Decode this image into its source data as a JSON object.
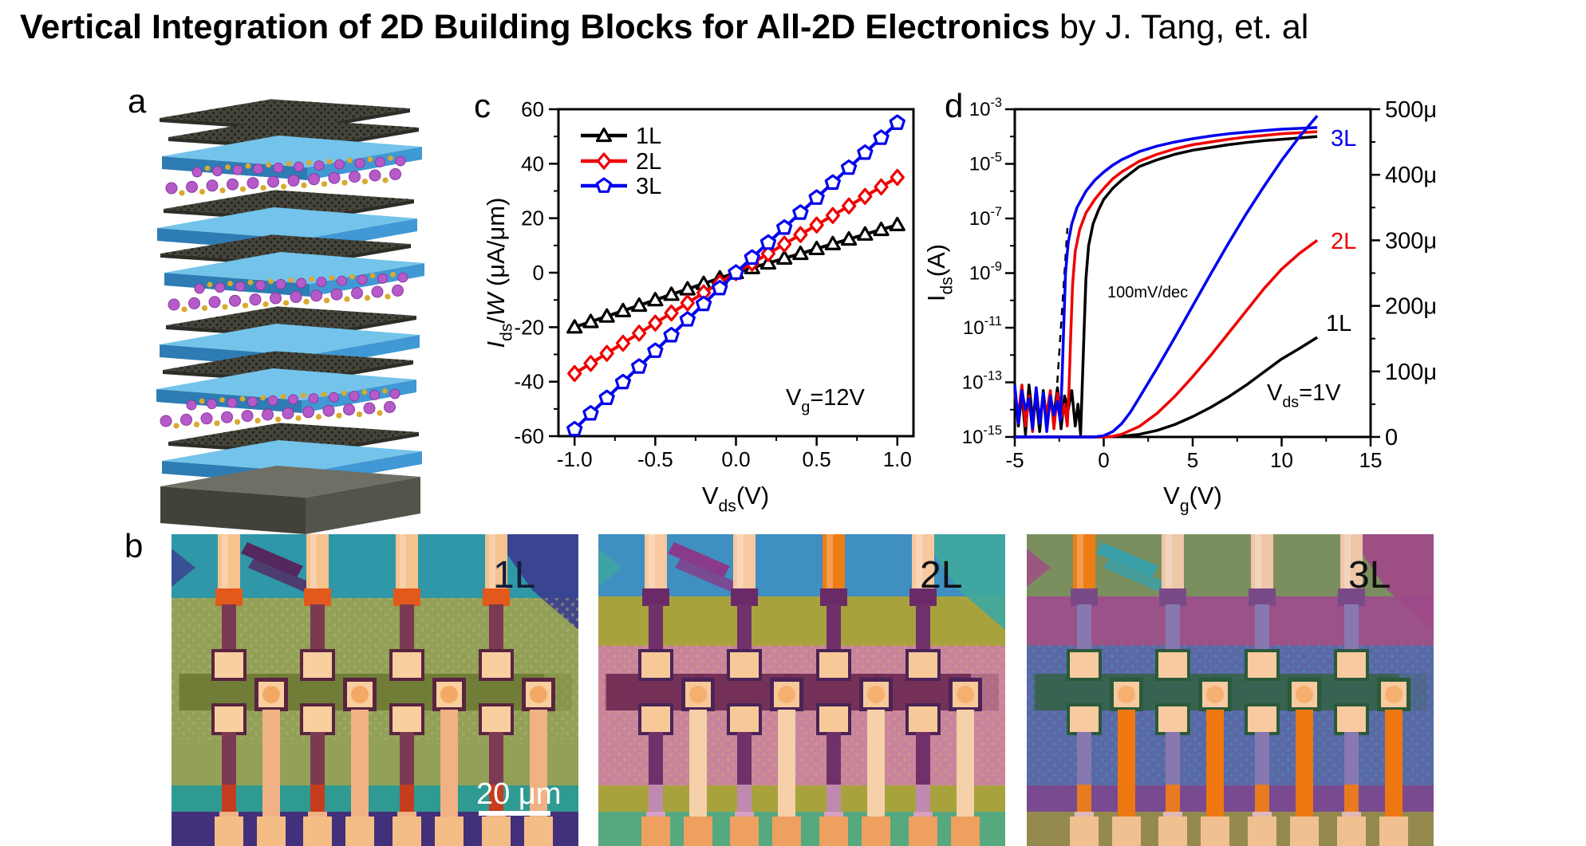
{
  "title": {
    "main": "Vertical Integration of 2D Building Blocks for All-2D Electronics",
    "byline": " by J. Tang, et. al"
  },
  "panels": {
    "a": "a",
    "b": "b",
    "c": "c",
    "d": "d"
  },
  "panel_a": {
    "description": "exploded 3D stack of alternating graphene, h-BN and TMD layers on a substrate",
    "colors": {
      "hbn_top": "#74c3ea",
      "hbn_front_left": "#2e7cb4",
      "hbn_front_right": "#4098d4",
      "graphene": "#45453c",
      "graphene_dot": "#23231c",
      "tmd_ball": "#b55ac8",
      "tmd_ball_edge": "#8a3aa0",
      "tmd_small_ball": "#d8aa30",
      "substrate_top": "#6f6f66",
      "substrate_front_left": "#42423a",
      "substrate_front_right": "#54544c"
    },
    "layers": [
      "graphene",
      "graphene",
      "hbn",
      "tmd",
      "graphene",
      "hbn",
      "graphene",
      "hbn",
      "tmd",
      "graphene",
      "hbn",
      "graphene",
      "hbn",
      "tmd",
      "graphene",
      "hbn",
      "substrate"
    ]
  },
  "chart_data": [
    {
      "id": "c",
      "type": "line",
      "xlabel": "V~ds~(V)",
      "ylabel": "*I*~ds~/*W* (μA/μm)",
      "annotation": "V~g~=12V",
      "xlim": [
        -1.1,
        1.1
      ],
      "ylim": [
        -60,
        60
      ],
      "xticks": [
        -1.0,
        -0.5,
        0.0,
        0.5,
        1.0
      ],
      "xtick_labels": [
        "-1.0",
        "-0.5",
        "0.0",
        "0.5",
        "1.0"
      ],
      "yticks": [
        -60,
        -40,
        -20,
        0,
        20,
        40,
        60
      ],
      "ytick_labels": [
        "-60",
        "-40",
        "-20",
        "0",
        "20",
        "40",
        "60"
      ],
      "grid": false,
      "legend_position": "top-left",
      "x": [
        -1.0,
        -0.9,
        -0.8,
        -0.7,
        -0.6,
        -0.5,
        -0.4,
        -0.3,
        -0.2,
        -0.1,
        0.0,
        0.1,
        0.2,
        0.3,
        0.4,
        0.5,
        0.6,
        0.7,
        0.8,
        0.9,
        1.0
      ],
      "series": [
        {
          "name": "1L",
          "color": "#000000",
          "marker": "triangle",
          "values": [
            -20,
            -18,
            -16,
            -14,
            -12,
            -10,
            -8,
            -6,
            -4,
            -2,
            0,
            1.8,
            3.5,
            5.3,
            7,
            8.8,
            10.6,
            12.3,
            14.1,
            15.8,
            17.6
          ]
        },
        {
          "name": "2L",
          "color": "#ee0000",
          "marker": "diamond",
          "values": [
            -37,
            -33.3,
            -29.6,
            -25.9,
            -22.2,
            -18.5,
            -14.8,
            -11.1,
            -7.4,
            -3.7,
            0,
            3.5,
            7,
            10.5,
            14,
            17.5,
            21,
            24.5,
            28,
            31.5,
            35
          ]
        },
        {
          "name": "3L",
          "color": "#0000ee",
          "marker": "pentagon",
          "values": [
            -57.5,
            -51.7,
            -46,
            -40.2,
            -34.5,
            -28.7,
            -23,
            -17.2,
            -11.5,
            -5.7,
            0,
            5.5,
            11,
            16.5,
            22,
            27.5,
            33,
            38.5,
            44,
            49.5,
            55
          ]
        }
      ]
    },
    {
      "id": "d",
      "type": "line",
      "xlabel": "V~g~(V)",
      "ylabel_left": "I~ds~(A)",
      "yscale_left": "log",
      "xlim": [
        -5,
        15
      ],
      "xticks": [
        -5,
        0,
        5,
        10,
        15
      ],
      "xtick_labels": [
        "-5",
        "0",
        "5",
        "10",
        "15"
      ],
      "left_exponent_ticks": [
        -3,
        -5,
        -7,
        -9,
        -11,
        -13,
        -15
      ],
      "left_tick_labels": [
        "10^-3^",
        "10^-5^",
        "10^-7^",
        "10^-9^",
        "10^-11^",
        "10^-13^",
        "10^-15^"
      ],
      "right_axis": {
        "range": [
          0,
          500
        ],
        "unit": "μA",
        "ticks": [
          500,
          400,
          300,
          200,
          100,
          0
        ],
        "labels": [
          "500μ",
          "400μ",
          "300μ",
          "200μ",
          "100μ",
          "0"
        ]
      },
      "annotations": {
        "slope": "100mV/dec",
        "bias": "V~ds~=1V"
      },
      "curve_labels": [
        {
          "text": "3L",
          "color": "#0000ee"
        },
        {
          "text": "2L",
          "color": "#ee0000"
        },
        {
          "text": "1L",
          "color": "#000000"
        }
      ],
      "dashed_guide": [
        [
          -2.76,
          -14.5
        ],
        [
          -2.04,
          -7.35
        ]
      ],
      "log_series": [
        {
          "name": "1L",
          "color": "#000000",
          "points": [
            [
              -5,
              -13.2
            ],
            [
              -4.8,
              -14.6
            ],
            [
              -4.6,
              -13.4
            ],
            [
              -4.4,
              -14.9
            ],
            [
              -4.2,
              -13.1
            ],
            [
              -4,
              -14.3
            ],
            [
              -3.8,
              -13.6
            ],
            [
              -3.6,
              -14.8
            ],
            [
              -3.4,
              -13.3
            ],
            [
              -3.2,
              -14.5
            ],
            [
              -3,
              -13.7
            ],
            [
              -2.8,
              -14.2
            ],
            [
              -2.6,
              -13.2
            ],
            [
              -2.4,
              -14.7
            ],
            [
              -2.2,
              -13.5
            ],
            [
              -2,
              -14
            ],
            [
              -1.8,
              -13.3
            ],
            [
              -1.6,
              -14.6
            ],
            [
              -1.45,
              -13.8
            ],
            [
              -1.3,
              -14.9
            ],
            [
              -1.2,
              -13
            ],
            [
              -1.1,
              -11
            ],
            [
              -1,
              -9.2
            ],
            [
              -0.85,
              -8
            ],
            [
              -0.6,
              -7.2
            ],
            [
              -0.3,
              -6.7
            ],
            [
              0,
              -6.3
            ],
            [
              0.5,
              -5.9
            ],
            [
              1,
              -5.6
            ],
            [
              2,
              -5.1
            ],
            [
              3,
              -4.85
            ],
            [
              4,
              -4.65
            ],
            [
              5,
              -4.5
            ],
            [
              6,
              -4.4
            ],
            [
              7,
              -4.3
            ],
            [
              8,
              -4.22
            ],
            [
              9,
              -4.15
            ],
            [
              10,
              -4.1
            ],
            [
              11,
              -4.05
            ],
            [
              12,
              -4
            ]
          ]
        },
        {
          "name": "2L",
          "color": "#ee0000",
          "points": [
            [
              -5,
              -13.4
            ],
            [
              -4.8,
              -14.2
            ],
            [
              -4.6,
              -13.1
            ],
            [
              -4.4,
              -14.6
            ],
            [
              -4.2,
              -13.5
            ],
            [
              -4,
              -14.8
            ],
            [
              -3.8,
              -13.2
            ],
            [
              -3.6,
              -14.4
            ],
            [
              -3.4,
              -13.6
            ],
            [
              -3.2,
              -14.1
            ],
            [
              -3,
              -13.3
            ],
            [
              -2.8,
              -14.7
            ],
            [
              -2.6,
              -13.4
            ],
            [
              -2.4,
              -14.3
            ],
            [
              -2.2,
              -13.8
            ],
            [
              -2.05,
              -14.6
            ],
            [
              -1.95,
              -13.2
            ],
            [
              -1.85,
              -11.2
            ],
            [
              -1.75,
              -9.4
            ],
            [
              -1.6,
              -8.2
            ],
            [
              -1.35,
              -7.4
            ],
            [
              -1,
              -6.8
            ],
            [
              -0.5,
              -6.3
            ],
            [
              0,
              -5.9
            ],
            [
              0.5,
              -5.55
            ],
            [
              1,
              -5.3
            ],
            [
              2,
              -4.9
            ],
            [
              3,
              -4.65
            ],
            [
              4,
              -4.45
            ],
            [
              5,
              -4.3
            ],
            [
              6,
              -4.2
            ],
            [
              7,
              -4.1
            ],
            [
              8,
              -4.02
            ],
            [
              9,
              -3.96
            ],
            [
              10,
              -3.9
            ],
            [
              11,
              -3.86
            ],
            [
              12,
              -3.82
            ]
          ]
        },
        {
          "name": "3L",
          "color": "#0000ee",
          "points": [
            [
              -5,
              -13.1
            ],
            [
              -4.8,
              -14.5
            ],
            [
              -4.6,
              -13.3
            ],
            [
              -4.4,
              -14
            ],
            [
              -4.2,
              -13.6
            ],
            [
              -4,
              -14.7
            ],
            [
              -3.8,
              -13.2
            ],
            [
              -3.6,
              -14.5
            ],
            [
              -3.4,
              -13.4
            ],
            [
              -3.2,
              -14.8
            ],
            [
              -3,
              -13.5
            ],
            [
              -2.8,
              -14.2
            ],
            [
              -2.6,
              -13.7
            ],
            [
              -2.45,
              -14.4
            ],
            [
              -2.35,
              -13
            ],
            [
              -2.25,
              -11
            ],
            [
              -2.15,
              -9
            ],
            [
              -2,
              -7.9
            ],
            [
              -1.8,
              -7.2
            ],
            [
              -1.5,
              -6.6
            ],
            [
              -1,
              -6
            ],
            [
              -0.5,
              -5.6
            ],
            [
              0,
              -5.3
            ],
            [
              0.5,
              -5.05
            ],
            [
              1,
              -4.85
            ],
            [
              2,
              -4.55
            ],
            [
              3,
              -4.35
            ],
            [
              4,
              -4.2
            ],
            [
              5,
              -4.08
            ],
            [
              6,
              -3.98
            ],
            [
              7,
              -3.9
            ],
            [
              8,
              -3.84
            ],
            [
              9,
              -3.78
            ],
            [
              10,
              -3.73
            ],
            [
              11,
              -3.7
            ],
            [
              12,
              -3.67
            ]
          ]
        }
      ],
      "linear_series": [
        {
          "name": "1L",
          "color": "#000000",
          "points": [
            [
              -5,
              0
            ],
            [
              0,
              0
            ],
            [
              1,
              1
            ],
            [
              2,
              4
            ],
            [
              3,
              10
            ],
            [
              4,
              19
            ],
            [
              5,
              31
            ],
            [
              6,
              45
            ],
            [
              7,
              61
            ],
            [
              8,
              79
            ],
            [
              9,
              99
            ],
            [
              10,
              119
            ],
            [
              11,
              135
            ],
            [
              12,
              152
            ]
          ]
        },
        {
          "name": "2L",
          "color": "#ee0000",
          "points": [
            [
              -5,
              0
            ],
            [
              0,
              0
            ],
            [
              0.5,
              1
            ],
            [
              1,
              4
            ],
            [
              2,
              16
            ],
            [
              3,
              36
            ],
            [
              4,
              62
            ],
            [
              5,
              92
            ],
            [
              6,
              124
            ],
            [
              7,
              158
            ],
            [
              8,
              192
            ],
            [
              9,
              226
            ],
            [
              10,
              256
            ],
            [
              11,
              280
            ],
            [
              12,
              300
            ]
          ]
        },
        {
          "name": "3L",
          "color": "#0000ee",
          "points": [
            [
              -5,
              0
            ],
            [
              -0.5,
              0
            ],
            [
              0,
              2
            ],
            [
              0.5,
              8
            ],
            [
              1,
              20
            ],
            [
              1.5,
              38
            ],
            [
              2,
              60
            ],
            [
              3,
              105
            ],
            [
              4,
              152
            ],
            [
              5,
              200
            ],
            [
              6,
              248
            ],
            [
              7,
              295
            ],
            [
              8,
              340
            ],
            [
              9,
              382
            ],
            [
              10,
              422
            ],
            [
              11,
              458
            ],
            [
              12,
              490
            ]
          ]
        }
      ]
    }
  ],
  "panel_b": {
    "scalebar_text": "20 μm",
    "images": [
      {
        "label": "1L",
        "label_color": "#141c38",
        "has_scalebar": true,
        "bright_drains": [],
        "palette": {
          "top_band": "#2f97a8",
          "patch_a": "#3b3e8f",
          "patch_b": "#55275f",
          "upper": null,
          "mid": "#93a057",
          "speckle": "#aab46f",
          "channel": "#6e7a35",
          "strip": "#2f9a92",
          "bottom": "#43307a",
          "finger": "#f6c28e",
          "bright": "#ee7d15",
          "collar": "#e2591b",
          "covered": "#7c3a52",
          "pad": "#f8cf9e",
          "pad_ring": "#5a2440",
          "via": "#f3a965",
          "seg": "#c63c1e",
          "lower_finger": "#f0b184",
          "source_finger": "#f0b184",
          "stub": "#f5bd86"
        }
      },
      {
        "label": "2L",
        "label_color": "#101010",
        "has_scalebar": false,
        "bright_drains": [
          2
        ],
        "palette": {
          "top_band": "#3f8fc0",
          "patch_a": "#3fa8a0",
          "patch_b": "#8a3a8a",
          "upper": "#a8a23c",
          "mid": "#c8849c",
          "speckle": "#d8a078",
          "channel": "#6e2a52",
          "strip": "#a8a23c",
          "bottom": "#56a87e",
          "finger": "#f8c9a0",
          "bright": "#ee7d15",
          "collar": "#6a2a68",
          "covered": "#70306a",
          "pad": "#f8c998",
          "pad_ring": "#4a2458",
          "via": "#f5b070",
          "seg": "#c08ab0",
          "lower_finger": "#d8a0c0",
          "source_finger": "#f5d0a8",
          "stub": "#eea060"
        }
      },
      {
        "label": "3L",
        "label_color": "#101010",
        "has_scalebar": false,
        "bright_drains": [
          0
        ],
        "palette": {
          "top_band": "#7b8f5e",
          "patch_a": "#a04a88",
          "patch_b": "#3aa0a8",
          "upper": "#9a5288",
          "mid": "#5a68a8",
          "speckle": "#4a90a0",
          "channel": "#35624a",
          "strip": "#7a4a90",
          "bottom": "#958a4e",
          "finger": "#eec6a8",
          "bright": "#ee7d15",
          "collar": "#7a4a88",
          "covered": "#8878b0",
          "pad": "#f8caa0",
          "pad_ring": "#2a5a3a",
          "via": "#f5b070",
          "seg": "#e87b20",
          "lower_finger": "#e0b8b8",
          "source_finger": "#ee7711",
          "stub": "#f0c090"
        }
      }
    ]
  }
}
